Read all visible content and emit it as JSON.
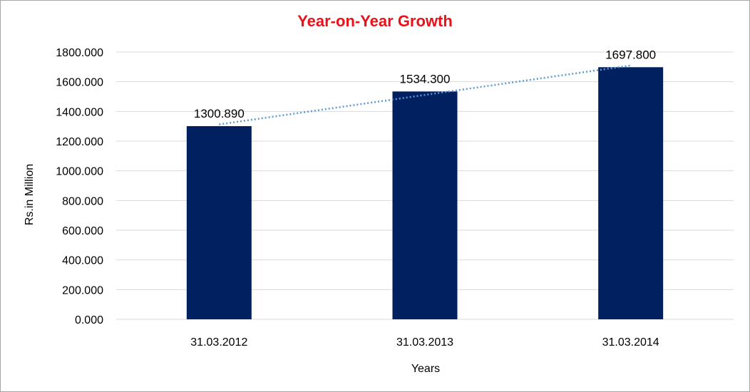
{
  "chart_data": {
    "type": "bar",
    "title": "Year-on-Year Growth",
    "xlabel": "Years",
    "ylabel": "Rs.in Million",
    "categories": [
      "31.03.2012",
      "31.03.2013",
      "31.03.2014"
    ],
    "values": [
      1300.89,
      1534.3,
      1697.8
    ],
    "data_labels": [
      "1300.890",
      "1534.300",
      "1697.800"
    ],
    "ylim": [
      0,
      1800
    ],
    "yticks": [
      0,
      200,
      400,
      600,
      800,
      1000,
      1200,
      1400,
      1600,
      1800
    ],
    "ytick_labels": [
      "0.000",
      "200.000",
      "400.000",
      "600.000",
      "800.000",
      "1000.000",
      "1200.000",
      "1400.000",
      "1600.000",
      "1800.000"
    ],
    "grid": true,
    "legend": "none",
    "trendline": "linear",
    "colors": {
      "title": "#e8121a",
      "bar": "#002060",
      "trendline": "#5b9bd5",
      "grid": "#d9d9d9"
    }
  }
}
